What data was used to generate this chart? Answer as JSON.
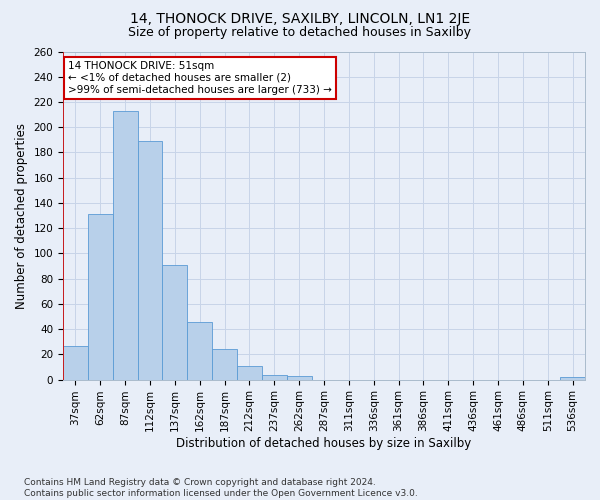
{
  "title_line1": "14, THONOCK DRIVE, SAXILBY, LINCOLN, LN1 2JE",
  "title_line2": "Size of property relative to detached houses in Saxilby",
  "xlabel": "Distribution of detached houses by size in Saxilby",
  "ylabel": "Number of detached properties",
  "categories": [
    "37sqm",
    "62sqm",
    "87sqm",
    "112sqm",
    "137sqm",
    "162sqm",
    "187sqm",
    "212sqm",
    "237sqm",
    "262sqm",
    "287sqm",
    "311sqm",
    "336sqm",
    "361sqm",
    "386sqm",
    "411sqm",
    "436sqm",
    "461sqm",
    "486sqm",
    "511sqm",
    "536sqm"
  ],
  "values": [
    27,
    131,
    213,
    189,
    91,
    46,
    24,
    11,
    4,
    3,
    0,
    0,
    0,
    0,
    0,
    0,
    0,
    0,
    0,
    0,
    2
  ],
  "bar_color": "#b8d0ea",
  "bar_edge_color": "#5b9bd5",
  "plot_bg_color": "#e8eef8",
  "fig_bg_color": "#e8eef8",
  "grid_color": "#c8d4e8",
  "annotation_box_text": "14 THONOCK DRIVE: 51sqm\n← <1% of detached houses are smaller (2)\n>99% of semi-detached houses are larger (733) →",
  "annotation_box_facecolor": "#ffffff",
  "annotation_box_edgecolor": "#cc0000",
  "vline_color": "#cc0000",
  "ylim": [
    0,
    260
  ],
  "yticks": [
    0,
    20,
    40,
    60,
    80,
    100,
    120,
    140,
    160,
    180,
    200,
    220,
    240,
    260
  ],
  "title1_fontsize": 10,
  "title2_fontsize": 9,
  "xlabel_fontsize": 8.5,
  "ylabel_fontsize": 8.5,
  "tick_fontsize": 7.5,
  "annot_fontsize": 7.5,
  "footnote_fontsize": 6.5,
  "footnote": "Contains HM Land Registry data © Crown copyright and database right 2024.\nContains public sector information licensed under the Open Government Licence v3.0."
}
